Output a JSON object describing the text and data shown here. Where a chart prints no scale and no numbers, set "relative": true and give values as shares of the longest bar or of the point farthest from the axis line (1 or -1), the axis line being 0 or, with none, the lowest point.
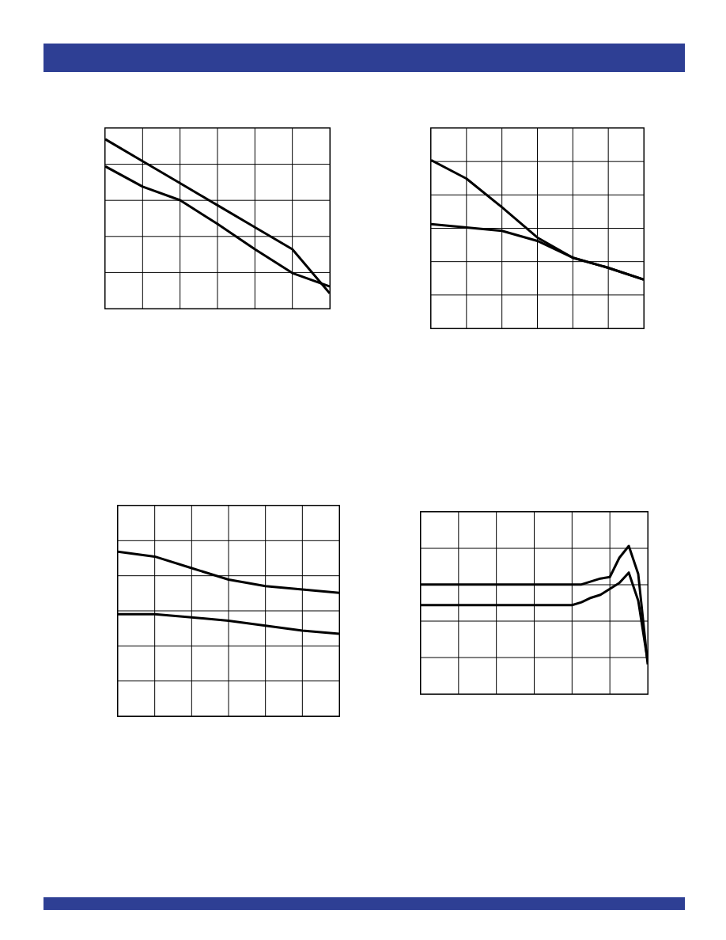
{
  "chart_data": [
    {
      "type": "line",
      "relative": true,
      "grid": true,
      "marker": "none",
      "categories": [
        null,
        null,
        null,
        null,
        null,
        null,
        null
      ],
      "series": [
        {
          "color": "#000000",
          "values": [
            1,
            0.87,
            0.74,
            0.61,
            0.48,
            0.35,
            0.09
          ]
        },
        {
          "color": "#000000",
          "values": [
            0.84,
            0.72,
            0.64,
            0.5,
            0.35,
            0.21,
            0.13
          ]
        }
      ]
    },
    {
      "type": "line",
      "relative": true,
      "grid": true,
      "marker": "none",
      "categories": [
        null,
        null,
        null,
        null,
        null,
        null,
        null
      ],
      "series": [
        {
          "color": "#000000",
          "values": [
            1,
            0.89,
            0.72,
            0.54,
            0.42,
            0.36,
            0.29
          ]
        },
        {
          "color": "#000000",
          "values": [
            0.62,
            0.6,
            0.58,
            0.52,
            0.42,
            0.36,
            0.29
          ]
        }
      ]
    },
    {
      "type": "line",
      "relative": true,
      "grid": true,
      "marker": "none",
      "categories": [
        null,
        null,
        null,
        null,
        null,
        null,
        null
      ],
      "series": [
        {
          "color": "#000000",
          "values": [
            1,
            0.97,
            0.9,
            0.83,
            0.79,
            0.77,
            0.75
          ]
        },
        {
          "color": "#000000",
          "values": [
            0.62,
            0.62,
            0.6,
            0.58,
            0.55,
            0.52,
            0.5
          ]
        }
      ]
    },
    {
      "type": "line",
      "relative": true,
      "grid": true,
      "marker": "none",
      "categories": [
        null,
        null,
        null,
        null,
        null,
        null,
        null,
        null,
        null,
        null,
        null,
        null,
        null,
        null,
        null,
        null,
        null,
        null,
        null,
        null,
        null,
        null,
        null,
        null,
        null
      ],
      "series": [
        {
          "color": "#000000",
          "values": [
            0.74,
            0.74,
            0.74,
            0.74,
            0.74,
            0.74,
            0.74,
            0.74,
            0.74,
            0.74,
            0.74,
            0.74,
            0.74,
            0.74,
            0.74,
            0.74,
            0.74,
            0.74,
            0.76,
            0.78,
            0.79,
            0.92,
            1,
            0.81,
            0.2
          ]
        },
        {
          "color": "#000000",
          "values": [
            0.6,
            0.6,
            0.6,
            0.6,
            0.6,
            0.6,
            0.6,
            0.6,
            0.6,
            0.6,
            0.6,
            0.6,
            0.6,
            0.6,
            0.6,
            0.6,
            0.6,
            0.62,
            0.65,
            0.67,
            0.71,
            0.75,
            0.82,
            0.63,
            0.22
          ]
        }
      ]
    }
  ]
}
